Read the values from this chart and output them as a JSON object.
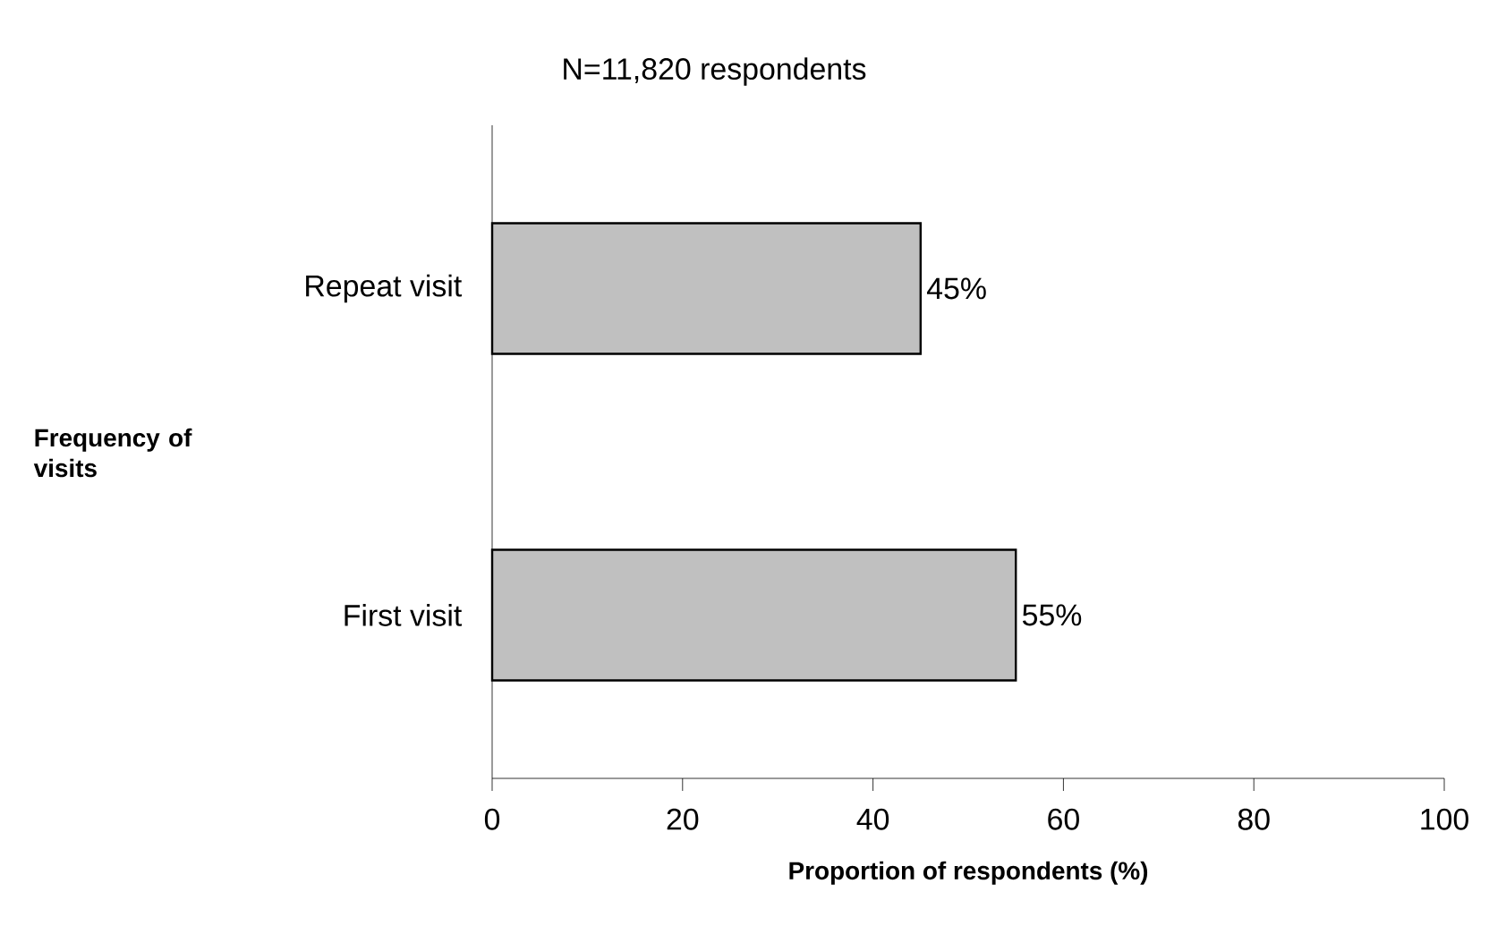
{
  "chart_data": {
    "type": "bar",
    "orientation": "horizontal",
    "title": "N=11,820 respondents",
    "xlabel": "Proportion of respondents (%)",
    "ylabel": "Frequency of visits",
    "categories": [
      "Repeat visit",
      "First visit"
    ],
    "values": [
      45,
      55
    ],
    "value_labels": [
      "45%",
      "55%"
    ],
    "color": "#c0c0c0",
    "xlim": [
      0,
      100
    ],
    "xticks": [
      0,
      20,
      40,
      60,
      80,
      100
    ]
  }
}
